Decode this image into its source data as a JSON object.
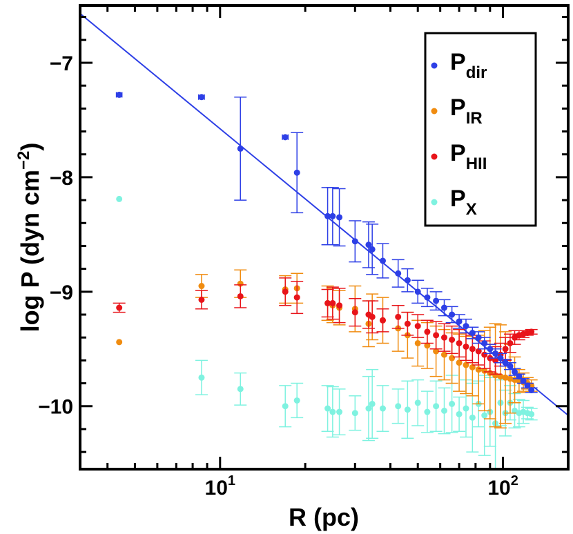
{
  "chart_data": {
    "type": "scatter",
    "title": "",
    "xlabel": "R (pc)",
    "ylabel_main": "log P (dyn cm",
    "ylabel_sup": "−2",
    "ylabel_close": ")",
    "xscale": "log",
    "xlim": [
      3.2,
      170
    ],
    "ylim": [
      -10.55,
      -6.5
    ],
    "x_ticks": [
      {
        "value": 10,
        "base": "10",
        "exp": "1"
      },
      {
        "value": 100,
        "base": "10",
        "exp": "2"
      }
    ],
    "y_ticks": [
      {
        "value": -7,
        "label": "−7"
      },
      {
        "value": -8,
        "label": "−8"
      },
      {
        "value": -9,
        "label": "−9"
      },
      {
        "value": -10,
        "label": "−10"
      }
    ],
    "grid": false,
    "legend": {
      "position": "top-right",
      "entries": [
        {
          "base": "P",
          "sub": "dir",
          "color": "#2d3fe6"
        },
        {
          "base": "P",
          "sub": "IR",
          "color": "#f08c10"
        },
        {
          "base": "P",
          "sub": "HII",
          "color": "#e8141a"
        },
        {
          "base": "P",
          "sub": "X",
          "color": "#7ff2e0"
        }
      ]
    },
    "fit_line": {
      "color": "#2d3fe6",
      "x": [
        3.2,
        170
      ],
      "y": [
        -6.57,
        -10.08
      ]
    },
    "series": [
      {
        "name": "P_X",
        "color": "#7ff2e0",
        "x": [
          4.4,
          8.6,
          11.8,
          17,
          18.7,
          24,
          25,
          26.4,
          30,
          33.5,
          34.5,
          37.6,
          42.6,
          46,
          50,
          54,
          58,
          62,
          66,
          70,
          74,
          78,
          82,
          86,
          90,
          94,
          98,
          102,
          106,
          110,
          114,
          118,
          122,
          126
        ],
        "y": [
          -8.19,
          -9.75,
          -9.85,
          -10.0,
          -9.95,
          -10.02,
          -10.05,
          -10.05,
          -10.06,
          -10.02,
          -9.98,
          -10.02,
          -10.0,
          -10.03,
          -9.97,
          -10.05,
          -10.0,
          -10.04,
          -9.98,
          -10.07,
          -10.02,
          -10.1,
          -9.98,
          -10.08,
          -10.05,
          -10.15,
          -9.97,
          -10.06,
          -9.97,
          -10.04,
          -10.06,
          -10.05,
          -10.06,
          -10.07
        ],
        "err": [
          0,
          0.15,
          0.14,
          0.18,
          0.15,
          0.2,
          0.22,
          0.2,
          0.15,
          0.28,
          0.3,
          0.2,
          0.15,
          0.25,
          0.2,
          0.18,
          0.22,
          0.2,
          0.25,
          0.15,
          0.25,
          0.3,
          0.2,
          0.35,
          0.3,
          0.4,
          0.2,
          0.2,
          0.15,
          0.15,
          0.12,
          0.1,
          0.05,
          0.05
        ]
      },
      {
        "name": "P_IR",
        "color": "#f08c10",
        "x": [
          4.4,
          8.6,
          11.8,
          17,
          18.7,
          24,
          25,
          26.4,
          30,
          33.5,
          34.5,
          37.6,
          42.6,
          46,
          50,
          54,
          58,
          62,
          66,
          70,
          74,
          78,
          82,
          86,
          90,
          94,
          98,
          102,
          106,
          110,
          114,
          118,
          122,
          126
        ],
        "y": [
          -9.44,
          -8.95,
          -8.93,
          -8.98,
          -8.97,
          -9.1,
          -9.12,
          -9.14,
          -9.15,
          -9.28,
          -9.22,
          -9.25,
          -9.32,
          -9.38,
          -9.45,
          -9.47,
          -9.52,
          -9.55,
          -9.58,
          -9.62,
          -9.64,
          -9.66,
          -9.68,
          -9.69,
          -9.71,
          -9.73,
          -9.74,
          -9.75,
          -9.76,
          -9.77,
          -9.78,
          -9.79,
          -9.8,
          -9.82
        ],
        "err": [
          0,
          0.1,
          0.12,
          0.12,
          0.13,
          0.15,
          0.15,
          0.15,
          0.2,
          0.2,
          0.2,
          0.2,
          0.2,
          0.2,
          0.2,
          0.2,
          0.22,
          0.22,
          0.22,
          0.25,
          0.25,
          0.25,
          0.3,
          0.35,
          0.4,
          0.45,
          0.45,
          0.4,
          0.3,
          0.2,
          0.1,
          0.08,
          0.05,
          0.05
        ]
      },
      {
        "name": "P_HII",
        "color": "#e8141a",
        "x": [
          4.4,
          8.6,
          11.8,
          17,
          18.7,
          24,
          25,
          26.4,
          30,
          33.5,
          34.5,
          37.6,
          42.6,
          46,
          50,
          54,
          58,
          62,
          66,
          70,
          74,
          78,
          82,
          86,
          90,
          94,
          98,
          102,
          106,
          110,
          114,
          118,
          122,
          126
        ],
        "y": [
          -9.14,
          -9.07,
          -9.04,
          -9.0,
          -9.05,
          -9.1,
          -9.1,
          -9.12,
          -9.18,
          -9.2,
          -9.22,
          -9.25,
          -9.22,
          -9.28,
          -9.3,
          -9.35,
          -9.38,
          -9.4,
          -9.42,
          -9.45,
          -9.48,
          -9.5,
          -9.52,
          -9.55,
          -9.58,
          -9.6,
          -9.55,
          -9.5,
          -9.45,
          -9.4,
          -9.38,
          -9.37,
          -9.36,
          -9.35
        ],
        "err": [
          0.04,
          0.08,
          0.1,
          0.12,
          0.14,
          0.12,
          0.14,
          0.15,
          0.12,
          0.12,
          0.14,
          0.1,
          0.1,
          0.1,
          0.1,
          0.1,
          0.12,
          0.12,
          0.12,
          0.12,
          0.12,
          0.12,
          0.12,
          0.12,
          0.12,
          0.12,
          0.1,
          0.1,
          0.08,
          0.06,
          0.04,
          0.03,
          0.02,
          0.02
        ]
      },
      {
        "name": "P_dir",
        "color": "#2d3fe6",
        "x": [
          4.4,
          8.6,
          11.8,
          17,
          18.7,
          24,
          25,
          26.4,
          30,
          33.5,
          34.5,
          37.6,
          42.6,
          46,
          50,
          54,
          58,
          62,
          66,
          70,
          74,
          78,
          82,
          86,
          90,
          94,
          98,
          102,
          106,
          110,
          114,
          118,
          122,
          126
        ],
        "y": [
          -7.28,
          -7.3,
          -7.75,
          -7.65,
          -7.96,
          -8.34,
          -8.34,
          -8.35,
          -8.56,
          -8.59,
          -8.63,
          -8.73,
          -8.84,
          -8.9,
          -9.0,
          -9.05,
          -9.08,
          -9.14,
          -9.2,
          -9.26,
          -9.3,
          -9.36,
          -9.4,
          -9.45,
          -9.5,
          -9.54,
          -9.58,
          -9.62,
          -9.65,
          -9.7,
          -9.74,
          -9.78,
          -9.82,
          -9.86
        ],
        "err": [
          0,
          0,
          0.45,
          0,
          0.35,
          0.25,
          0.25,
          0.25,
          0.18,
          0.2,
          0.22,
          0.15,
          0.12,
          0.1,
          0.1,
          0.08,
          0.08,
          0.07,
          0.07,
          0.06,
          0.06,
          0.05,
          0.05,
          0.05,
          0.04,
          0.04,
          0.04,
          0.03,
          0.03,
          0.03,
          0.02,
          0.02,
          0.02,
          0.02
        ],
        "xerr": [
          0.1,
          0.2,
          0,
          0.4,
          0,
          0,
          0,
          0,
          0,
          0,
          0,
          0,
          0,
          0,
          0,
          0,
          0,
          0,
          0,
          0,
          0,
          0,
          0,
          0,
          0,
          0,
          0,
          0,
          0,
          0,
          0,
          0,
          0,
          0
        ]
      }
    ]
  }
}
